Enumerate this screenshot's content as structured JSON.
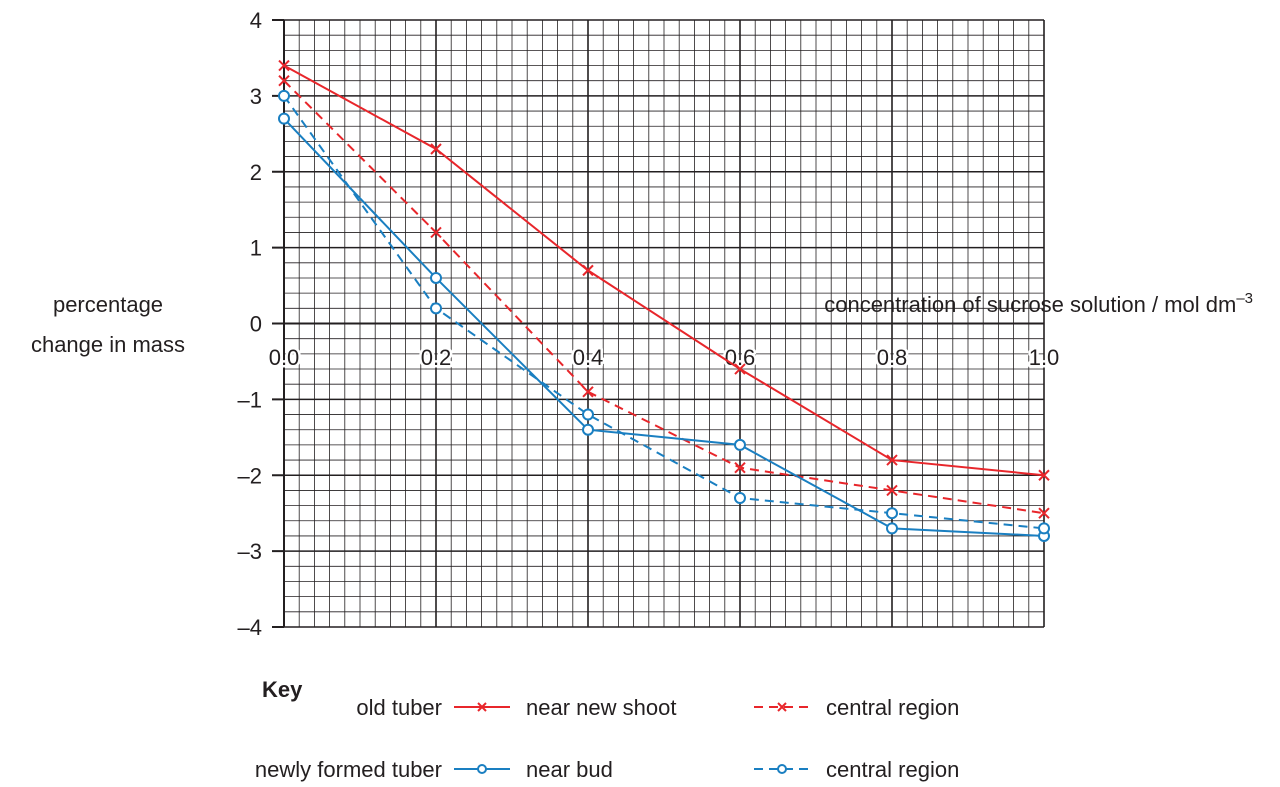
{
  "chart_data": {
    "type": "line",
    "title": "",
    "xlabel": "concentration of sucrose solution / mol dm",
    "xlabel_superscript": "–3",
    "ylabel_lines": [
      "percentage",
      "change in mass"
    ],
    "xlim": [
      0.0,
      1.0
    ],
    "ylim": [
      -4,
      4
    ],
    "x_ticks": [
      "0.0",
      "0.2",
      "0.4",
      "0.6",
      "0.8",
      "1.0"
    ],
    "y_ticks": [
      "4",
      "3",
      "2",
      "1",
      "0",
      "–1",
      "–2",
      "–3",
      "–4"
    ],
    "grid": true,
    "x": [
      0.0,
      0.2,
      0.4,
      0.6,
      0.8,
      1.0
    ],
    "series": [
      {
        "name": "near new shoot",
        "group": "old tuber",
        "color": "#e8262b",
        "marker": "cross",
        "dash": "solid",
        "values": [
          3.4,
          2.3,
          0.7,
          -0.6,
          -1.8,
          -2.0
        ]
      },
      {
        "name": "central region",
        "group": "old tuber",
        "color": "#e8262b",
        "marker": "cross",
        "dash": "dashed",
        "values": [
          3.2,
          1.2,
          -0.9,
          -1.9,
          -2.2,
          -2.5
        ]
      },
      {
        "name": "near bud",
        "group": "newly formed tuber",
        "color": "#1a7fc1",
        "marker": "circle",
        "dash": "solid",
        "values": [
          2.7,
          0.6,
          -1.4,
          -1.6,
          -2.7,
          -2.8
        ]
      },
      {
        "name": "central region",
        "group": "newly formed tuber",
        "color": "#1a7fc1",
        "marker": "circle",
        "dash": "dashed",
        "values": [
          3.0,
          0.2,
          -1.2,
          -2.3,
          -2.5,
          -2.7
        ]
      }
    ],
    "legend": {
      "title": "Key",
      "group_labels": [
        "old tuber",
        "newly formed tuber"
      ],
      "placement": "bottom"
    }
  }
}
